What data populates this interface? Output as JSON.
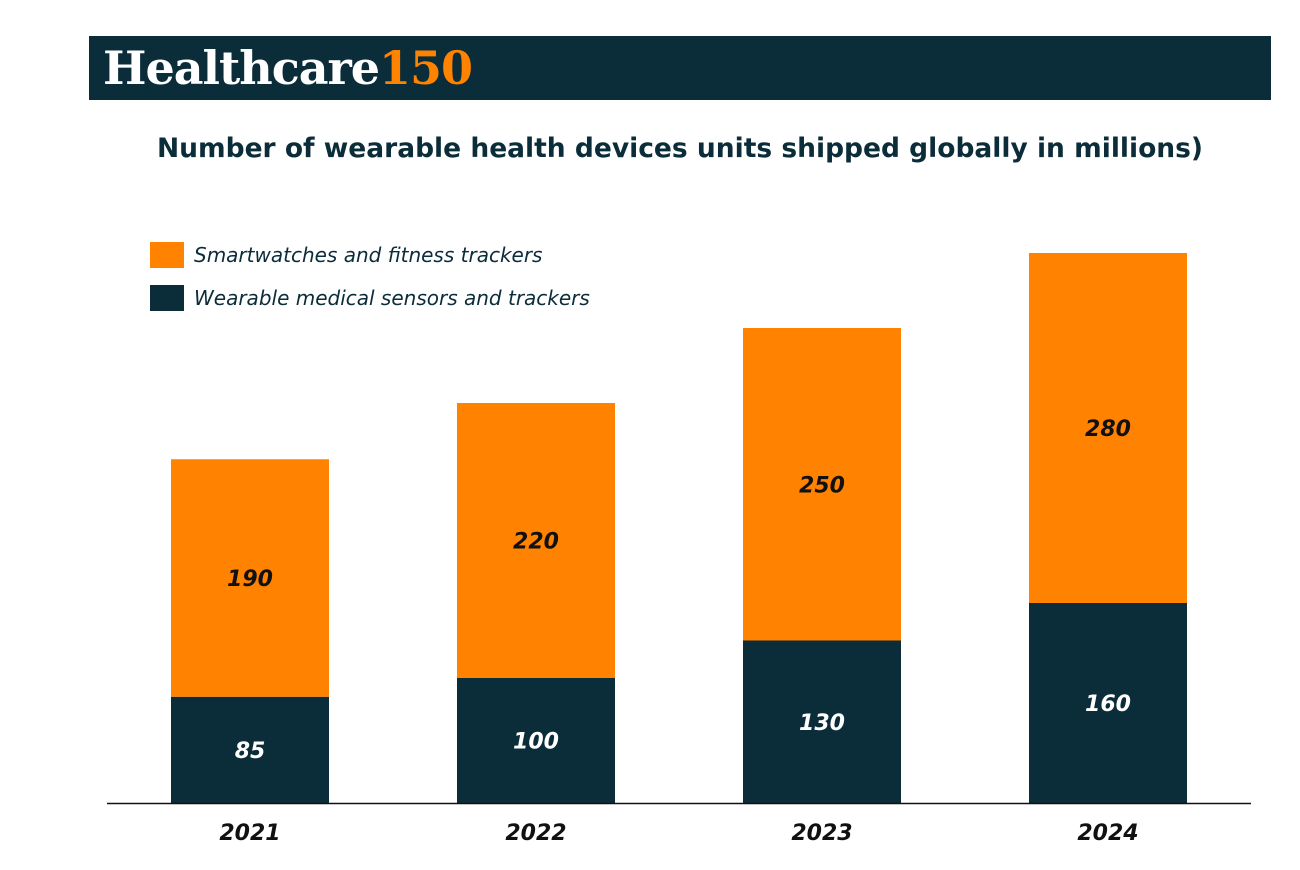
{
  "header": {
    "logo_word": "Healthcare",
    "logo_number": "150"
  },
  "colors": {
    "brand_dark": "#0b2c39",
    "brand_orange": "#ff8200"
  },
  "chart_data": {
    "type": "bar",
    "stacked": true,
    "title": "Number of wearable health devices units shipped globally in millions)",
    "categories": [
      "2021",
      "2022",
      "2023",
      "2024"
    ],
    "series": [
      {
        "name": "Wearable medical sensors and trackers",
        "color": "#0b2c39",
        "label_color": "#ffffff",
        "values": [
          85,
          100,
          130,
          160
        ]
      },
      {
        "name": "Smartwatches and fitness trackers",
        "color": "#ff8200",
        "label_color": "#111111",
        "values": [
          190,
          220,
          250,
          280
        ]
      }
    ],
    "legend_position": "top-left",
    "grid": false,
    "xlabel": "",
    "ylabel": ""
  }
}
